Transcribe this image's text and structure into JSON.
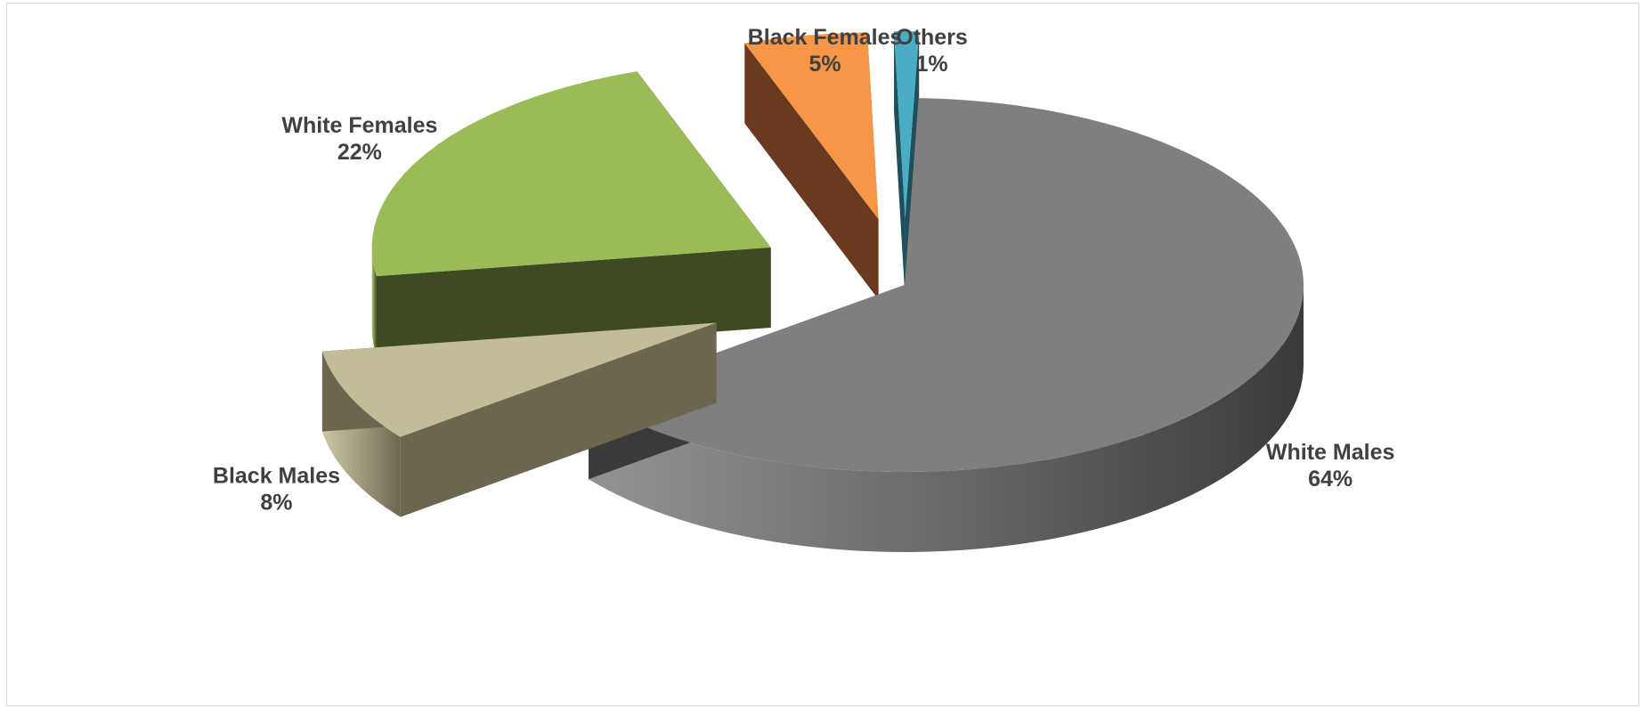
{
  "chart_data": {
    "type": "pie",
    "style": "3d-exploded",
    "slices": [
      {
        "name": "White Males",
        "label": "White Males",
        "value": 64,
        "value_label": "64%",
        "color": "#7f7f7f",
        "side_color": "#3a3a3a"
      },
      {
        "name": "Black Males",
        "label": "Black Males",
        "value": 8,
        "value_label": "8%",
        "color": "#c3bc98",
        "side_color": "#6c6650"
      },
      {
        "name": "White Females",
        "label": "White Females",
        "value": 22,
        "value_label": "22%",
        "color": "#9bbb59",
        "side_color": "#3e4a21"
      },
      {
        "name": "Black Females",
        "label": "Black Females",
        "value": 5,
        "value_label": "5%",
        "color": "#f79646",
        "side_color": "#6a3a1e"
      },
      {
        "name": "Others",
        "label": "Others",
        "value": 1,
        "value_label": "1%",
        "color": "#4bacc6",
        "side_color": "#1d4f5c"
      }
    ],
    "title": "",
    "legend": "none",
    "data_labels": "category and percentage"
  }
}
